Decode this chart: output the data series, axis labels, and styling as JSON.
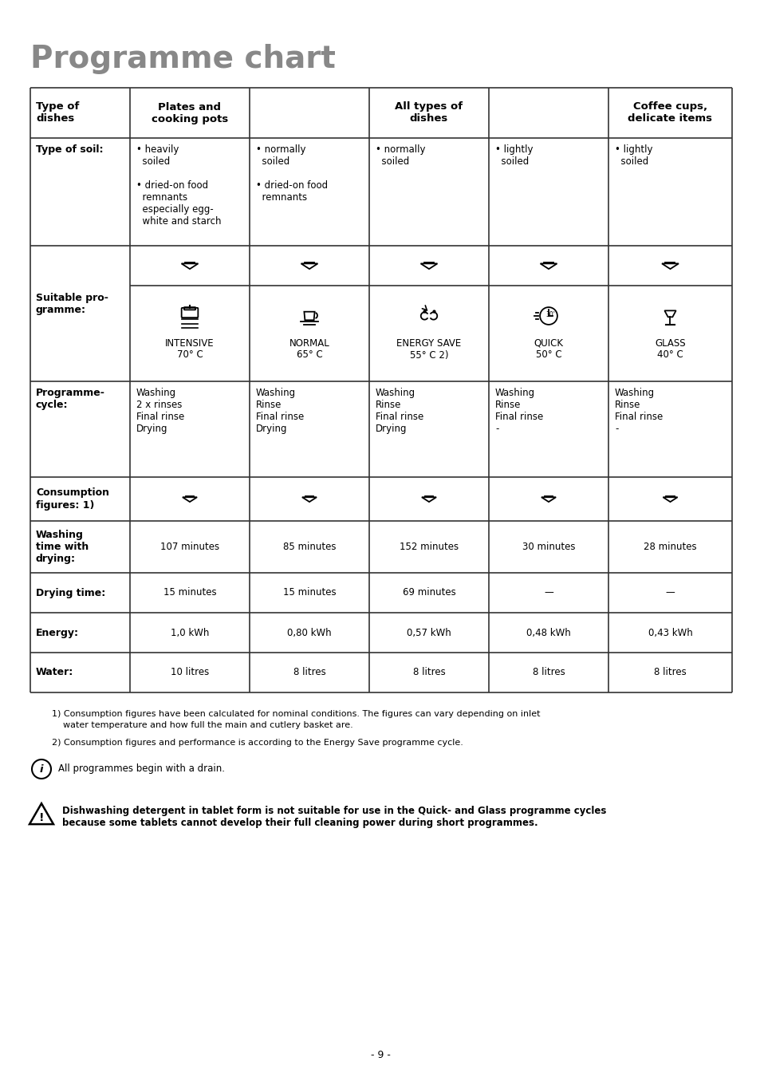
{
  "title": "Programme chart",
  "title_color": "#888888",
  "bg_color": "#ffffff",
  "header_row": [
    "Type of\ndishes",
    "Plates and\ncooking pots",
    "All types of\ndishes",
    "",
    "",
    "Coffee cups,\ndelicate items"
  ],
  "programme_names": [
    "INTENSIVE",
    "NORMAL",
    "ENERGY SAVE",
    "QUICK",
    "GLASS"
  ],
  "programme_temps": [
    "70° C",
    "65° C",
    "55° C 2)",
    "50° C",
    "40° C"
  ],
  "cycle_col1": "Washing\n2 x rinses\nFinal rinse\nDrying",
  "cycle_col2": "Washing\nRinse\nFinal rinse\nDrying",
  "cycle_col3": "Washing\nRinse\nFinal rinse\nDrying",
  "cycle_col4": "Washing\nRinse\nFinal rinse\n-",
  "cycle_col5": "Washing\nRinse\nFinal rinse\n-",
  "washing_times": [
    "107 minutes",
    "85 minutes",
    "152 minutes",
    "30 minutes",
    "28 minutes"
  ],
  "drying_times": [
    "15 minutes",
    "15 minutes",
    "69 minutes",
    "—",
    "—"
  ],
  "energy_vals": [
    "1,0 kWh",
    "0,80 kWh",
    "0,57 kWh",
    "0,48 kWh",
    "0,43 kWh"
  ],
  "water_vals": [
    "10 litres",
    "8 litres",
    "8 litres",
    "8 litres",
    "8 litres"
  ],
  "footnote1a": "1) Consumption figures have been calculated for nominal conditions. The figures can vary depending on inlet",
  "footnote1b": "    water temperature and how full the main and cutlery basket are.",
  "footnote2": "2) Consumption figures and performance is according to the Energy Save programme cycle.",
  "info_text": "All programmes begin with a drain.",
  "warning_text": "Dishwashing detergent in tablet form is not suitable for use in the Quick- and Glass programme cycles\nbecause some tablets cannot develop their full cleaning power during short programmes.",
  "page_number": "- 9 -",
  "line_color": "#333333",
  "text_color": "#000000"
}
